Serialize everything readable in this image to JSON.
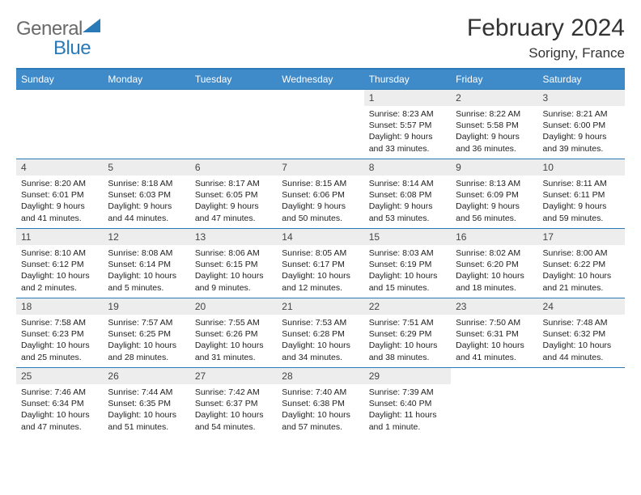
{
  "logo": {
    "general": "General",
    "blue": "Blue"
  },
  "header": {
    "title": "February 2024",
    "location": "Sorigny, France"
  },
  "colors": {
    "header_bg": "#3f8ac9",
    "border": "#2a7ab8",
    "daynum_bg": "#ededed",
    "text": "#222222",
    "logo_gray": "#6a6a6a",
    "logo_blue": "#2a7ab8"
  },
  "daysOfWeek": [
    "Sunday",
    "Monday",
    "Tuesday",
    "Wednesday",
    "Thursday",
    "Friday",
    "Saturday"
  ],
  "weeks": [
    [
      null,
      null,
      null,
      null,
      {
        "n": "1",
        "sunrise": "8:23 AM",
        "sunset": "5:57 PM",
        "daylight": "9 hours and 33 minutes."
      },
      {
        "n": "2",
        "sunrise": "8:22 AM",
        "sunset": "5:58 PM",
        "daylight": "9 hours and 36 minutes."
      },
      {
        "n": "3",
        "sunrise": "8:21 AM",
        "sunset": "6:00 PM",
        "daylight": "9 hours and 39 minutes."
      }
    ],
    [
      {
        "n": "4",
        "sunrise": "8:20 AM",
        "sunset": "6:01 PM",
        "daylight": "9 hours and 41 minutes."
      },
      {
        "n": "5",
        "sunrise": "8:18 AM",
        "sunset": "6:03 PM",
        "daylight": "9 hours and 44 minutes."
      },
      {
        "n": "6",
        "sunrise": "8:17 AM",
        "sunset": "6:05 PM",
        "daylight": "9 hours and 47 minutes."
      },
      {
        "n": "7",
        "sunrise": "8:15 AM",
        "sunset": "6:06 PM",
        "daylight": "9 hours and 50 minutes."
      },
      {
        "n": "8",
        "sunrise": "8:14 AM",
        "sunset": "6:08 PM",
        "daylight": "9 hours and 53 minutes."
      },
      {
        "n": "9",
        "sunrise": "8:13 AM",
        "sunset": "6:09 PM",
        "daylight": "9 hours and 56 minutes."
      },
      {
        "n": "10",
        "sunrise": "8:11 AM",
        "sunset": "6:11 PM",
        "daylight": "9 hours and 59 minutes."
      }
    ],
    [
      {
        "n": "11",
        "sunrise": "8:10 AM",
        "sunset": "6:12 PM",
        "daylight": "10 hours and 2 minutes."
      },
      {
        "n": "12",
        "sunrise": "8:08 AM",
        "sunset": "6:14 PM",
        "daylight": "10 hours and 5 minutes."
      },
      {
        "n": "13",
        "sunrise": "8:06 AM",
        "sunset": "6:15 PM",
        "daylight": "10 hours and 9 minutes."
      },
      {
        "n": "14",
        "sunrise": "8:05 AM",
        "sunset": "6:17 PM",
        "daylight": "10 hours and 12 minutes."
      },
      {
        "n": "15",
        "sunrise": "8:03 AM",
        "sunset": "6:19 PM",
        "daylight": "10 hours and 15 minutes."
      },
      {
        "n": "16",
        "sunrise": "8:02 AM",
        "sunset": "6:20 PM",
        "daylight": "10 hours and 18 minutes."
      },
      {
        "n": "17",
        "sunrise": "8:00 AM",
        "sunset": "6:22 PM",
        "daylight": "10 hours and 21 minutes."
      }
    ],
    [
      {
        "n": "18",
        "sunrise": "7:58 AM",
        "sunset": "6:23 PM",
        "daylight": "10 hours and 25 minutes."
      },
      {
        "n": "19",
        "sunrise": "7:57 AM",
        "sunset": "6:25 PM",
        "daylight": "10 hours and 28 minutes."
      },
      {
        "n": "20",
        "sunrise": "7:55 AM",
        "sunset": "6:26 PM",
        "daylight": "10 hours and 31 minutes."
      },
      {
        "n": "21",
        "sunrise": "7:53 AM",
        "sunset": "6:28 PM",
        "daylight": "10 hours and 34 minutes."
      },
      {
        "n": "22",
        "sunrise": "7:51 AM",
        "sunset": "6:29 PM",
        "daylight": "10 hours and 38 minutes."
      },
      {
        "n": "23",
        "sunrise": "7:50 AM",
        "sunset": "6:31 PM",
        "daylight": "10 hours and 41 minutes."
      },
      {
        "n": "24",
        "sunrise": "7:48 AM",
        "sunset": "6:32 PM",
        "daylight": "10 hours and 44 minutes."
      }
    ],
    [
      {
        "n": "25",
        "sunrise": "7:46 AM",
        "sunset": "6:34 PM",
        "daylight": "10 hours and 47 minutes."
      },
      {
        "n": "26",
        "sunrise": "7:44 AM",
        "sunset": "6:35 PM",
        "daylight": "10 hours and 51 minutes."
      },
      {
        "n": "27",
        "sunrise": "7:42 AM",
        "sunset": "6:37 PM",
        "daylight": "10 hours and 54 minutes."
      },
      {
        "n": "28",
        "sunrise": "7:40 AM",
        "sunset": "6:38 PM",
        "daylight": "10 hours and 57 minutes."
      },
      {
        "n": "29",
        "sunrise": "7:39 AM",
        "sunset": "6:40 PM",
        "daylight": "11 hours and 1 minute."
      },
      null,
      null
    ]
  ],
  "labels": {
    "sunrise": "Sunrise:",
    "sunset": "Sunset:",
    "daylight": "Daylight:"
  }
}
